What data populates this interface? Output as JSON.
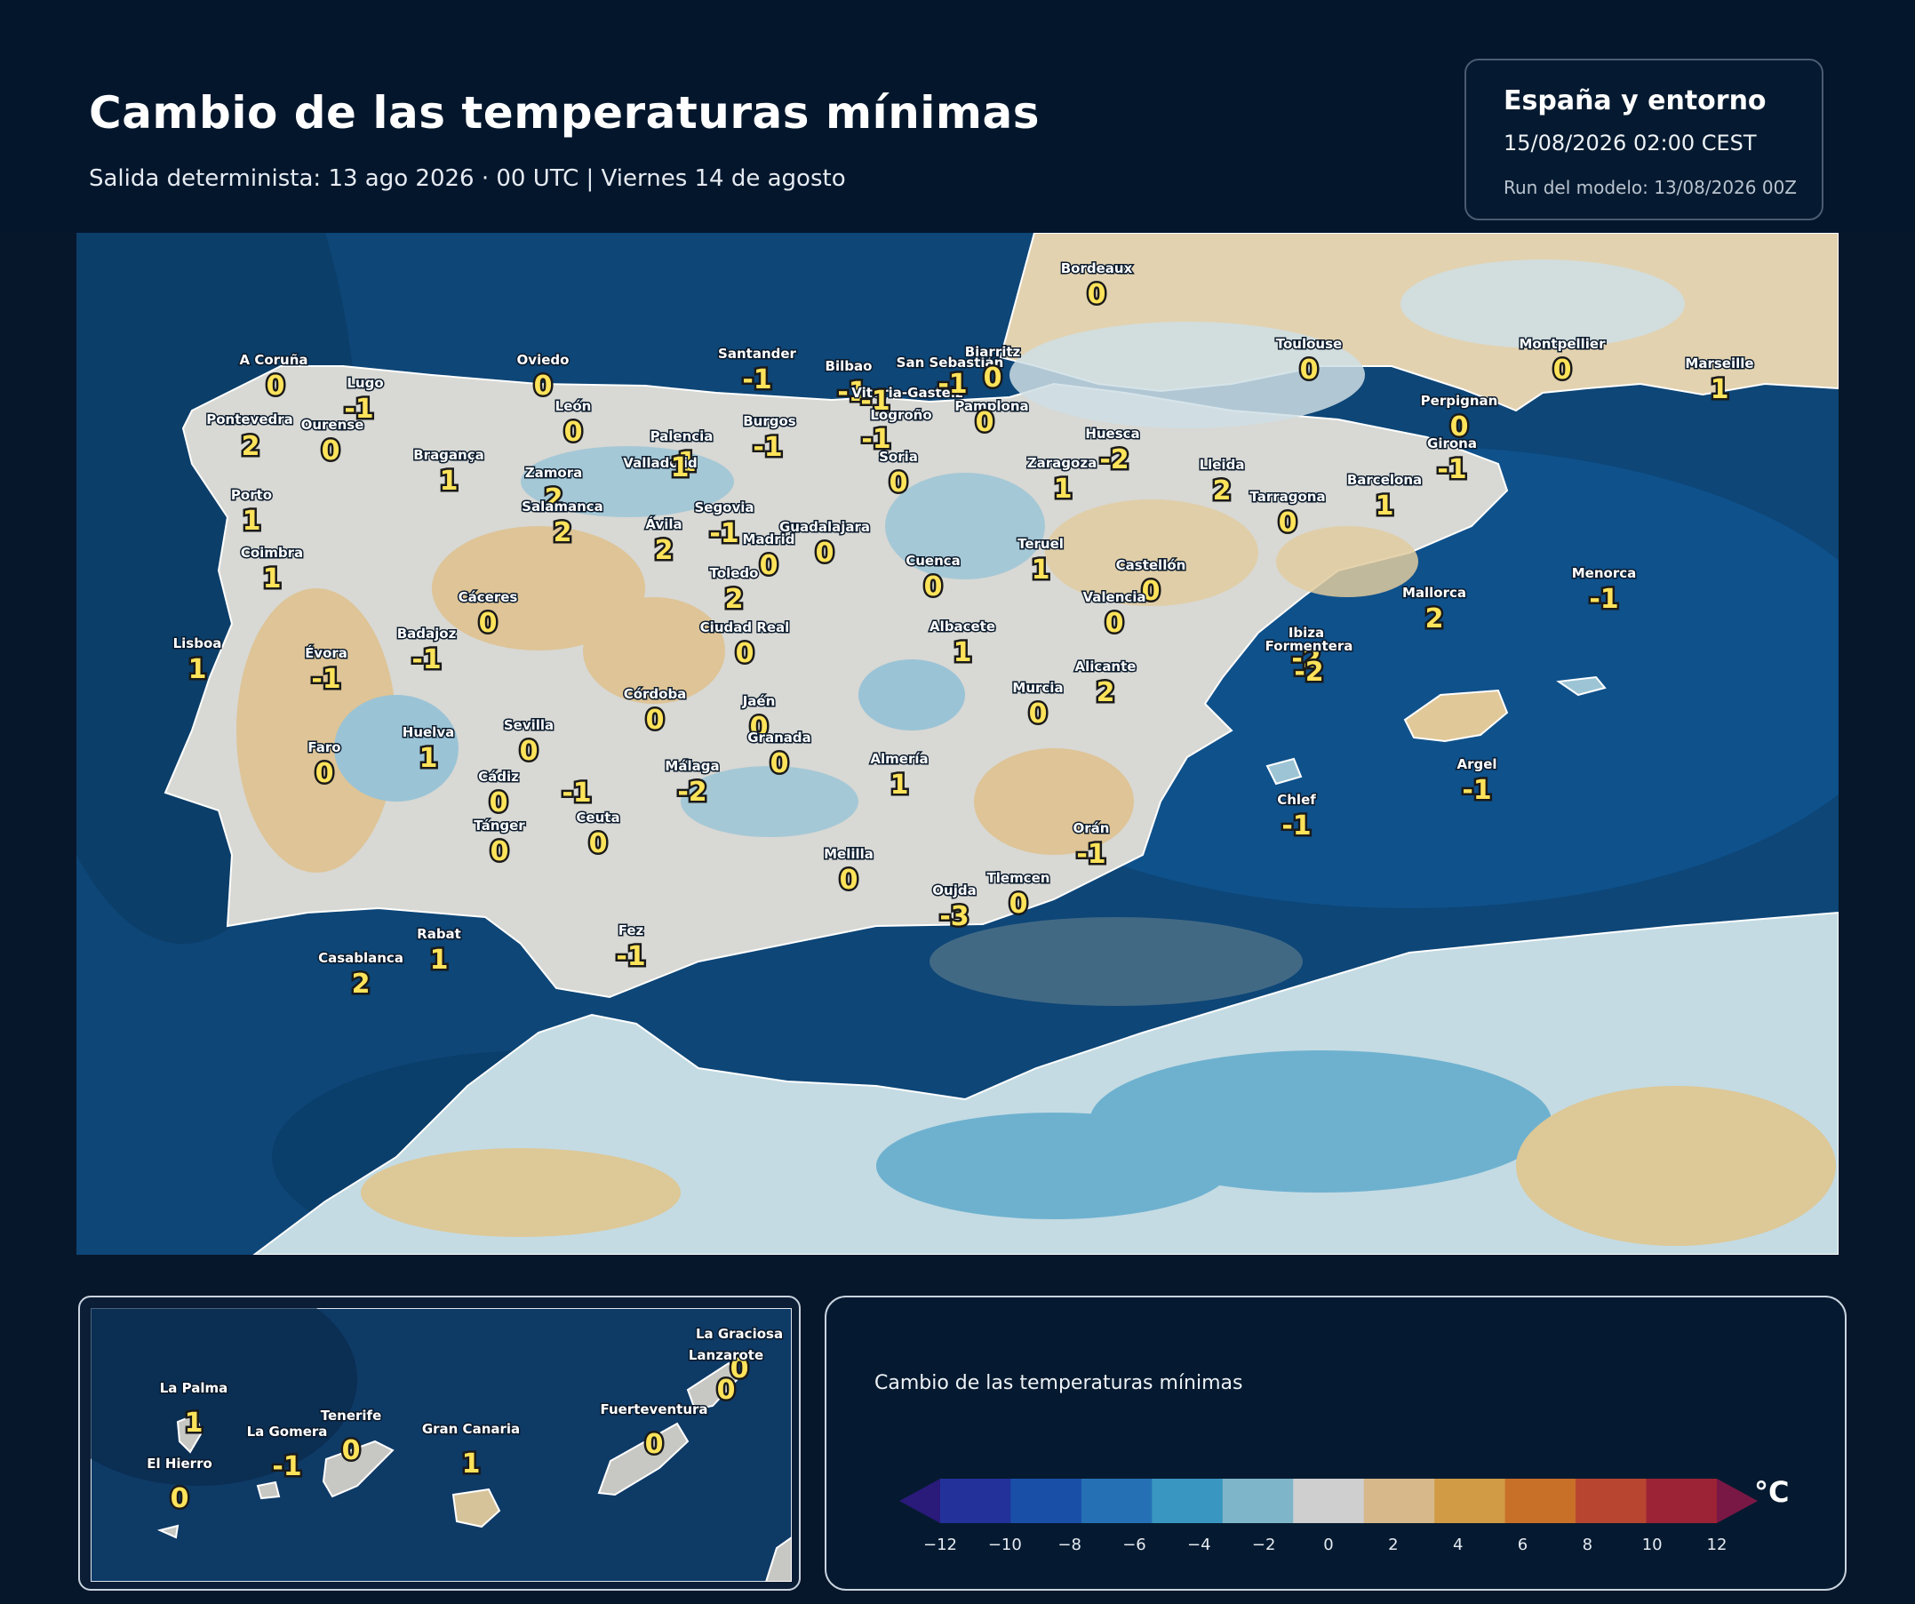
{
  "header": {
    "title": "Cambio de las temperaturas mínimas",
    "subtitle": "Salida determinista: 13 ago 2026 · 00 UTC  |  Viernes 14 de agosto"
  },
  "info_box": {
    "region": "España y entorno",
    "valid_time": "15/08/2026  02:00 CEST",
    "run": "Run del modelo: 13/08/2026 00Z"
  },
  "colors": {
    "background": "#07172b",
    "sea": "#0d4a7e",
    "land_neutral": "#d6d6d2",
    "label_value": "#ffe35a"
  },
  "map_cities": [
    {
      "name": "A Coruña",
      "value": "0"
    },
    {
      "name": "Lugo",
      "value": "-1"
    },
    {
      "name": "Oviedo",
      "value": "0"
    },
    {
      "name": "Santander",
      "value": "-1"
    },
    {
      "name": "Bilbao",
      "value": "-1"
    },
    {
      "name": "Vitoria-Gasteiz",
      "value": "-1"
    },
    {
      "name": "San Sebastián",
      "value": "-1"
    },
    {
      "name": "Biarritz",
      "value": "0"
    },
    {
      "name": "Pamplona",
      "value": "0"
    },
    {
      "name": "Bordeaux",
      "value": "0"
    },
    {
      "name": "Toulouse",
      "value": "0"
    },
    {
      "name": "Montpellier",
      "value": "0"
    },
    {
      "name": "Marseille",
      "value": "1"
    },
    {
      "name": "Perpignan",
      "value": "0"
    },
    {
      "name": "Pontevedra",
      "value": "2"
    },
    {
      "name": "Ourense",
      "value": "0"
    },
    {
      "name": "León",
      "value": "0"
    },
    {
      "name": "Burgos",
      "value": "-1"
    },
    {
      "name": "Logroño",
      "value": "-1"
    },
    {
      "name": "Palencia",
      "value": "-1"
    },
    {
      "name": "Huesca",
      "value": "-2"
    },
    {
      "name": "Girona",
      "value": "-1"
    },
    {
      "name": "Bragança",
      "value": "1"
    },
    {
      "name": "Valladolid",
      "value": "1"
    },
    {
      "name": "Soria",
      "value": "0"
    },
    {
      "name": "Zaragoza",
      "value": "1"
    },
    {
      "name": "Lleida",
      "value": "2"
    },
    {
      "name": "Barcelona",
      "value": "1"
    },
    {
      "name": "Zamora",
      "value": "2"
    },
    {
      "name": "Porto",
      "value": "1"
    },
    {
      "name": "Salamanca",
      "value": "2"
    },
    {
      "name": "Segovia",
      "value": "-1"
    },
    {
      "name": "Tarragona",
      "value": "0"
    },
    {
      "name": "Ávila",
      "value": "2"
    },
    {
      "name": "Guadalajara",
      "value": "0"
    },
    {
      "name": "Madrid",
      "value": "0"
    },
    {
      "name": "Teruel",
      "value": "1"
    },
    {
      "name": "Coimbra",
      "value": "1"
    },
    {
      "name": "Cuenca",
      "value": "0"
    },
    {
      "name": "Castellón",
      "value": "0"
    },
    {
      "name": "Toledo",
      "value": "2"
    },
    {
      "name": "Cáceres",
      "value": "0"
    },
    {
      "name": "Valencia",
      "value": "0"
    },
    {
      "name": "Menorca",
      "value": "-1"
    },
    {
      "name": "Mallorca",
      "value": "2"
    },
    {
      "name": "Ciudad Real",
      "value": "0"
    },
    {
      "name": "Albacete",
      "value": "1"
    },
    {
      "name": "Badajoz",
      "value": "-1"
    },
    {
      "name": "Lisboa",
      "value": "1"
    },
    {
      "name": "Évora",
      "value": "-1"
    },
    {
      "name": "Ibiza",
      "value": "-2"
    },
    {
      "name": "Formentera",
      "value": "-2"
    },
    {
      "name": "Alicante",
      "value": "2"
    },
    {
      "name": "Murcia",
      "value": "0"
    },
    {
      "name": "Córdoba",
      "value": "0"
    },
    {
      "name": "Jaén",
      "value": "0"
    },
    {
      "name": "Huelva",
      "value": "1"
    },
    {
      "name": "Sevilla",
      "value": "0"
    },
    {
      "name": "Granada",
      "value": "0"
    },
    {
      "name": "Faro",
      "value": "0"
    },
    {
      "name": "Almería",
      "value": "1"
    },
    {
      "name": "Málaga",
      "value": "-2"
    },
    {
      "name": "Cádiz",
      "value": "0"
    },
    {
      "name": "Argel",
      "value": "-1"
    },
    {
      "name": "Chlef",
      "value": "-1"
    },
    {
      "name": "Ceuta",
      "value": "0"
    },
    {
      "name": "Tánger",
      "value": "0"
    },
    {
      "name": "Orán",
      "value": "-1"
    },
    {
      "name": "Melilla",
      "value": "0"
    },
    {
      "name": "Tlemcen",
      "value": "0"
    },
    {
      "name": "Oujda",
      "value": "-3"
    },
    {
      "name": "Rabat",
      "value": "1"
    },
    {
      "name": "Fez",
      "value": "-1"
    },
    {
      "name": "Casablanca",
      "value": "2"
    }
  ],
  "malaga_extra_value": "-1",
  "canarias": [
    {
      "name": "La Graciosa",
      "value": "0"
    },
    {
      "name": "Lanzarote",
      "value": "0"
    },
    {
      "name": "La Palma",
      "value": "1"
    },
    {
      "name": "Tenerife",
      "value": "0"
    },
    {
      "name": "Fuerteventura",
      "value": "0"
    },
    {
      "name": "La Gomera",
      "value": "-1"
    },
    {
      "name": "Gran Canaria",
      "value": "1"
    },
    {
      "name": "El Hierro",
      "value": "0"
    }
  ],
  "legend": {
    "title": "Cambio de las temperaturas mínimas",
    "unit": "°C",
    "ticks": [
      "−12",
      "−10",
      "−8",
      "−6",
      "−4",
      "−2",
      "0",
      "2",
      "4",
      "6",
      "8",
      "10",
      "12"
    ],
    "colors": [
      "#2a1a7a",
      "#22329a",
      "#1a4fa8",
      "#2570b4",
      "#3996c0",
      "#7fb5c8",
      "#cfcfcf",
      "#d6b88a",
      "#d19a45",
      "#c86f28",
      "#b8452f",
      "#9b2335",
      "#7a1845"
    ]
  }
}
